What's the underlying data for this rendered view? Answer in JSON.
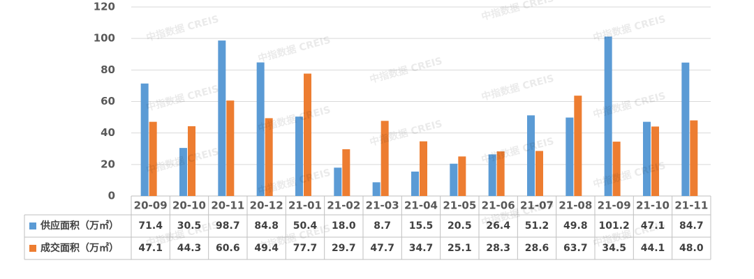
{
  "chart_data": {
    "type": "bar",
    "categories": [
      "20-09",
      "20-10",
      "20-11",
      "20-12",
      "21-01",
      "21-02",
      "21-03",
      "21-04",
      "21-05",
      "21-06",
      "21-07",
      "21-08",
      "21-09",
      "21-10",
      "21-11"
    ],
    "series": [
      {
        "name": "供应面积（万㎡）",
        "color": "#5b9bd5",
        "values": [
          71.4,
          30.5,
          98.7,
          84.8,
          50.4,
          18.0,
          8.7,
          15.5,
          20.5,
          26.4,
          51.2,
          49.8,
          101.2,
          47.1,
          84.7
        ],
        "value_labels": [
          "71.4",
          "30.5",
          "98.7",
          "84.8",
          "50.4",
          "18.0",
          "8.7",
          "15.5",
          "20.5",
          "26.4",
          "51.2",
          "49.8",
          "101.2",
          "47.1",
          "84.7"
        ]
      },
      {
        "name": "成交面积（万㎡）",
        "color": "#ed7d31",
        "values": [
          47.1,
          44.3,
          60.6,
          49.4,
          77.7,
          29.7,
          47.7,
          34.7,
          25.1,
          28.3,
          28.6,
          63.7,
          34.5,
          44.1,
          48.0
        ],
        "value_labels": [
          "47.1",
          "44.3",
          "60.6",
          "49.4",
          "77.7",
          "29.7",
          "47.7",
          "34.7",
          "25.1",
          "28.3",
          "28.6",
          "63.7",
          "34.5",
          "44.1",
          "48.0"
        ]
      }
    ],
    "ylim": [
      0,
      120
    ],
    "yticks": [
      0,
      20,
      40,
      60,
      80,
      100,
      120
    ],
    "grid": true,
    "watermark": "中指数据 CREIS"
  }
}
